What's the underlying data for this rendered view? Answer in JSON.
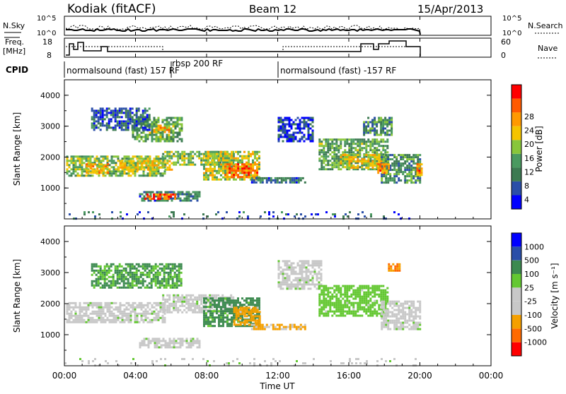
{
  "header": {
    "title": "Kodiak (fitACF)",
    "beam": "Beam 12",
    "date": "15/Apr/2013"
  },
  "aux_panels": {
    "nsky_label": "N.Sky",
    "nsearch_label": "N.Search",
    "nsky_ticks": [
      "10^5",
      "10^0"
    ],
    "freq_label_top": "Freq.",
    "freq_label_bottom": "[MHz]",
    "freq_ticks": [
      "18",
      "8"
    ],
    "nave_label": "Nave",
    "nave_ticks": [
      "60",
      "0"
    ],
    "cpid_label": "CPID",
    "cpid_segments": [
      {
        "label": "normalsound (fast) 157 RF",
        "start": 0,
        "end": 6
      },
      {
        "label": "rbsp 200 RF",
        "start": 6,
        "end": 12
      },
      {
        "label": "normalsound (fast) -157 RF",
        "start": 12,
        "end": 20
      }
    ]
  },
  "colors": {
    "power_scale": [
      "#0000ff",
      "#2a4ea8",
      "#3d7a52",
      "#4a9a60",
      "#88c63a",
      "#f5c400",
      "#ff9900",
      "#ff5a00",
      "#ff0000"
    ],
    "velocity_scale": [
      "#ff0000",
      "#ff6a00",
      "#f5a000",
      "#c8c8c8",
      "#c8c8c8",
      "#64c832",
      "#3d8a50",
      "#2a4ea8",
      "#0000ff"
    ],
    "ground_scatter": "#b4b4b4"
  },
  "chart_data": [
    {
      "type": "heatmap",
      "name": "power",
      "xlabel": "",
      "ylabel": "Slant Range [km]",
      "xlim": [
        0,
        24
      ],
      "ylim": [
        0,
        4500
      ],
      "yticks": [
        "1000",
        "2000",
        "3000",
        "4000"
      ],
      "colorbar": {
        "label": "Power [dB]",
        "ticks": [
          "4",
          "8",
          "12",
          "16",
          "20",
          "24",
          "28"
        ],
        "range": [
          0,
          30
        ]
      },
      "regions": [
        {
          "t0": 0.1,
          "t1": 5.6,
          "r0": 1400,
          "r1": 2050,
          "value": 14
        },
        {
          "t0": 1.2,
          "t1": 2.5,
          "r0": 1500,
          "r1": 1800,
          "value": 20
        },
        {
          "t0": 3.0,
          "t1": 6.0,
          "r0": 1600,
          "r1": 1900,
          "value": 18
        },
        {
          "t0": 3.8,
          "t1": 6.6,
          "r0": 2500,
          "r1": 3300,
          "value": 12
        },
        {
          "t0": 5.0,
          "t1": 5.9,
          "r0": 2800,
          "r1": 3050,
          "value": 20
        },
        {
          "t0": 1.5,
          "t1": 4.8,
          "r0": 2900,
          "r1": 3600,
          "value": 6
        },
        {
          "t0": 4.2,
          "t1": 7.6,
          "r0": 600,
          "r1": 900,
          "value": 8
        },
        {
          "t0": 4.5,
          "t1": 6.2,
          "r0": 680,
          "r1": 820,
          "value": 24
        },
        {
          "t0": 5.5,
          "t1": 9.5,
          "r0": 1750,
          "r1": 2200,
          "value": 14
        },
        {
          "t0": 7.8,
          "t1": 11.0,
          "r0": 1300,
          "r1": 2200,
          "value": 16
        },
        {
          "t0": 9.0,
          "t1": 10.8,
          "r0": 1350,
          "r1": 1800,
          "value": 24
        },
        {
          "t0": 10.5,
          "t1": 13.5,
          "r0": 1200,
          "r1": 1350,
          "value": 8
        },
        {
          "t0": 14.3,
          "t1": 18.2,
          "r0": 1600,
          "r1": 2600,
          "value": 12
        },
        {
          "t0": 15.5,
          "t1": 18.0,
          "r0": 1650,
          "r1": 2100,
          "value": 18
        },
        {
          "t0": 17.8,
          "t1": 20.0,
          "r0": 1200,
          "r1": 2100,
          "value": 10
        },
        {
          "t0": 17.6,
          "t1": 18.2,
          "r0": 1500,
          "r1": 1800,
          "value": 22
        },
        {
          "t0": 19.8,
          "t1": 20.1,
          "r0": 1400,
          "r1": 1800,
          "value": 22
        },
        {
          "t0": 12.0,
          "t1": 14.0,
          "r0": 2500,
          "r1": 3300,
          "value": 4
        },
        {
          "t0": 16.8,
          "t1": 18.4,
          "r0": 2700,
          "r1": 3300,
          "value": 10
        },
        {
          "t0": 0.0,
          "t1": 20.0,
          "r0": 0,
          "r1": 250,
          "value": 6
        }
      ]
    },
    {
      "type": "heatmap",
      "name": "velocity",
      "xlabel": "Time UT",
      "ylabel": "Slant Range [km]",
      "xlim": [
        0,
        24
      ],
      "ylim": [
        0,
        4500
      ],
      "xticks": [
        "00:00",
        "04:00",
        "08:00",
        "12:00",
        "16:00",
        "20:00",
        "00:00"
      ],
      "yticks": [
        "1000",
        "2000",
        "3000",
        "4000"
      ],
      "colorbar": {
        "label": "Velocity [m s⁻¹]",
        "ticks": [
          "1000",
          "500",
          "100",
          "25",
          "-25",
          "-100",
          "-500",
          "-1000"
        ]
      },
      "regions": [
        {
          "t0": 0.1,
          "t1": 5.6,
          "r0": 1400,
          "r1": 2050,
          "value": 0
        },
        {
          "t0": 1.5,
          "t1": 6.6,
          "r0": 2500,
          "r1": 3300,
          "value": 120
        },
        {
          "t0": 4.2,
          "t1": 7.6,
          "r0": 600,
          "r1": 900,
          "value": 0
        },
        {
          "t0": 5.5,
          "t1": 9.5,
          "r0": 1750,
          "r1": 2300,
          "value": 0
        },
        {
          "t0": 7.8,
          "t1": 11.0,
          "r0": 1300,
          "r1": 2200,
          "value": 200
        },
        {
          "t0": 9.5,
          "t1": 11.0,
          "r0": 1300,
          "r1": 1900,
          "value": -200
        },
        {
          "t0": 10.5,
          "t1": 13.5,
          "r0": 1200,
          "r1": 1350,
          "value": -150
        },
        {
          "t0": 12.0,
          "t1": 14.5,
          "r0": 2500,
          "r1": 3400,
          "value": 0
        },
        {
          "t0": 14.3,
          "t1": 18.2,
          "r0": 1600,
          "r1": 2600,
          "value": 60
        },
        {
          "t0": 17.8,
          "t1": 20.0,
          "r0": 1200,
          "r1": 2100,
          "value": 0
        },
        {
          "t0": 18.2,
          "t1": 18.9,
          "r0": 3050,
          "r1": 3300,
          "value": -600
        },
        {
          "t0": 0.0,
          "t1": 20.0,
          "r0": 0,
          "r1": 250,
          "value": 0
        }
      ]
    }
  ]
}
